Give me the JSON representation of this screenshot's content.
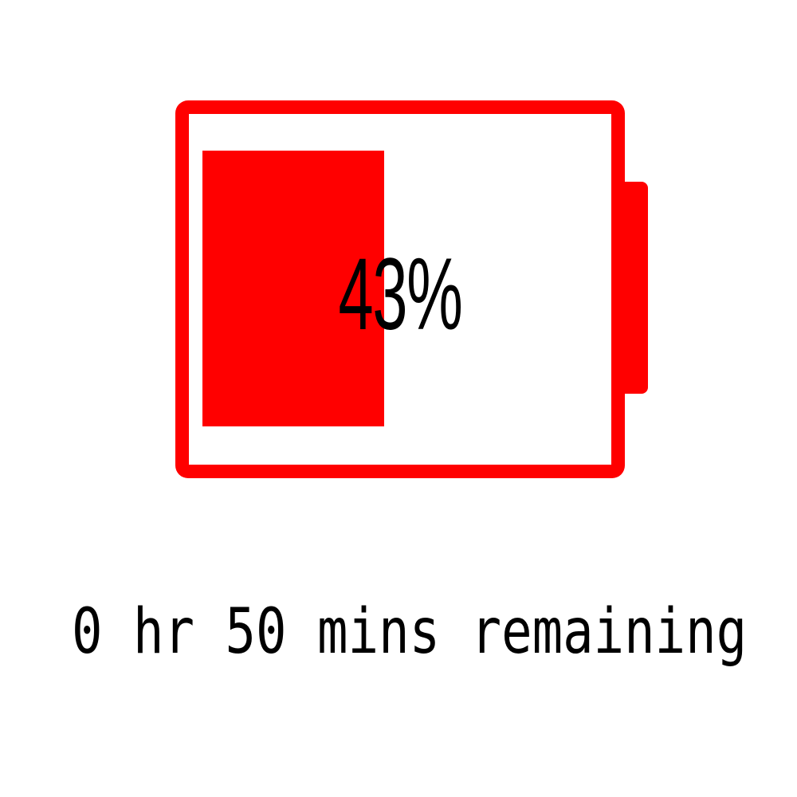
{
  "battery": {
    "percent_label": "43%",
    "level_fraction": 0.43,
    "remaining_label": "0 hr 50 mins remaining",
    "color": "#ff0000",
    "icon": "battery-icon"
  }
}
